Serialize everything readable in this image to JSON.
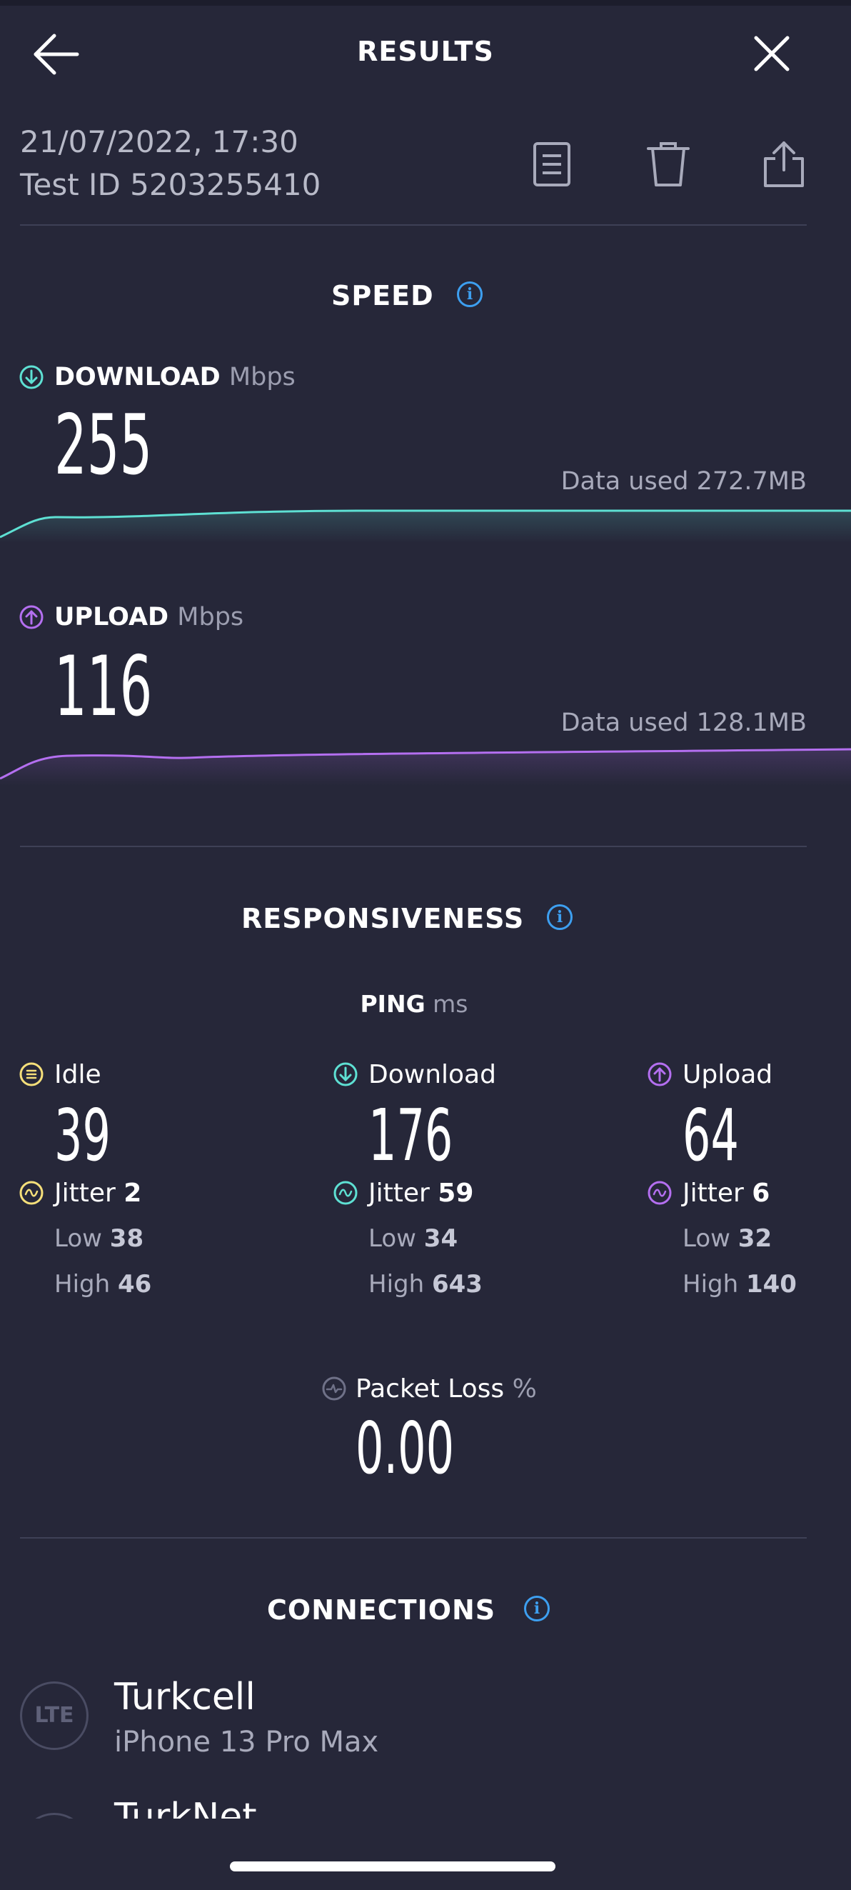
{
  "header": {
    "title": "RESULTS",
    "back_icon": "arrow-left-icon",
    "close_icon": "close-icon"
  },
  "test_meta": {
    "datetime": "21/07/2022, 17:30",
    "test_id": "Test ID 5203255410",
    "actions": [
      "document-icon",
      "trash-icon",
      "share-icon"
    ]
  },
  "speed": {
    "section_title": "SPEED",
    "download": {
      "label": "DOWNLOAD",
      "unit": "Mbps",
      "value": "255",
      "data_used": "Data used 272.7MB",
      "color": "#5ee0d3"
    },
    "upload": {
      "label": "UPLOAD",
      "unit": "Mbps",
      "value": "116",
      "data_used": "Data used 128.1MB",
      "color": "#b46ff0"
    }
  },
  "responsiveness": {
    "section_title": "RESPONSIVENESS",
    "ping_label": "PING",
    "ping_unit": "ms",
    "columns": [
      {
        "label": "Idle",
        "value": "39",
        "jitter_label": "Jitter",
        "jitter": "2",
        "low_label": "Low",
        "low": "38",
        "high_label": "High",
        "high": "46",
        "color": "#f5df7a"
      },
      {
        "label": "Download",
        "value": "176",
        "jitter_label": "Jitter",
        "jitter": "59",
        "low_label": "Low",
        "low": "34",
        "high_label": "High",
        "high": "643",
        "color": "#5ee0d3"
      },
      {
        "label": "Upload",
        "value": "64",
        "jitter_label": "Jitter",
        "jitter": "6",
        "low_label": "Low",
        "low": "32",
        "high_label": "High",
        "high": "140",
        "color": "#b46ff0"
      }
    ],
    "packet_loss": {
      "label": "Packet Loss",
      "unit": "%",
      "value": "0.00"
    }
  },
  "connections": {
    "section_title": "CONNECTIONS",
    "items": [
      {
        "badge": "LTE",
        "name": "Turkcell",
        "device": "iPhone 13 Pro Max"
      },
      {
        "badge": "",
        "name": "TurkNet",
        "device": ""
      }
    ]
  },
  "colors": {
    "background": "#262739",
    "info_blue": "#3d9ff0",
    "divider": "#3e4056"
  }
}
